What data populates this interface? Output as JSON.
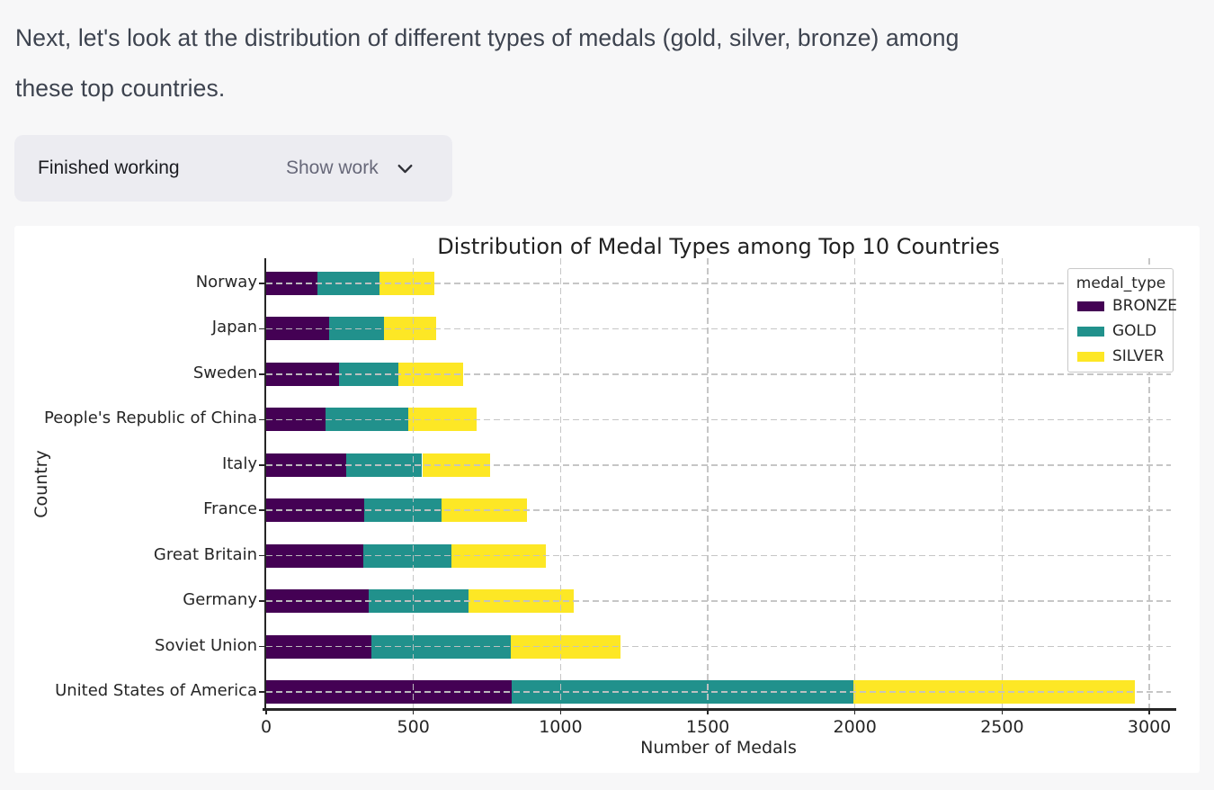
{
  "message": "Next, let's look at the distribution of different types of medals (gold, silver, bronze) among\nthese top countries.",
  "work_panel": {
    "status": "Finished working",
    "toggle": "Show work",
    "chevron_icon": "chevron-down"
  },
  "theme": {
    "page_bg": "#f7f7f8",
    "panel_bg": "#ececf1",
    "card_bg": "#ffffff",
    "axis_color": "#262626",
    "grid_color": "#c8c8c8"
  },
  "chart_data": {
    "type": "bar",
    "orientation": "horizontal",
    "stacked": true,
    "title": "Distribution of Medal Types among Top 10 Countries",
    "xlabel": "Number of Medals",
    "ylabel": "Country",
    "grid": "dashed",
    "xlim": [
      0,
      3073
    ],
    "xticks": [
      0,
      500,
      1000,
      1500,
      2000,
      2500,
      3000
    ],
    "legend": {
      "title": "medal_type",
      "position": "upper-right"
    },
    "categories": [
      "Norway",
      "Japan",
      "Sweden",
      "People's Republic of China",
      "Italy",
      "France",
      "Great Britain",
      "Germany",
      "Soviet Union",
      "United States of America"
    ],
    "series": [
      {
        "name": "BRONZE",
        "color": "#440154",
        "values": [
          175,
          215,
          246,
          200,
          273,
          333,
          330,
          349,
          357,
          834
        ]
      },
      {
        "name": "GOLD",
        "color": "#21918c",
        "values": [
          210,
          185,
          202,
          283,
          257,
          262,
          298,
          339,
          473,
          1162
        ]
      },
      {
        "name": "SILVER",
        "color": "#fde725",
        "values": [
          187,
          177,
          220,
          232,
          229,
          290,
          323,
          358,
          374,
          954
        ]
      }
    ]
  }
}
